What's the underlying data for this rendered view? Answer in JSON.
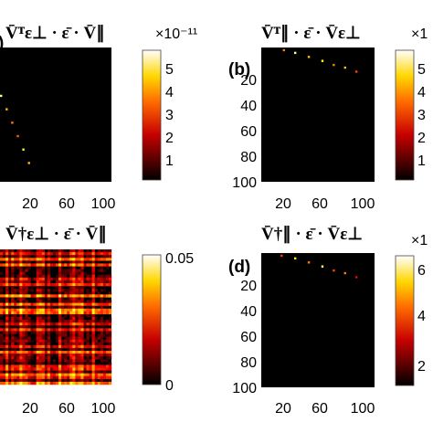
{
  "chart_data": [
    {
      "type": "heatmap",
      "panel_label": ")",
      "title": "V̄ᵀε⊥ · ε̄ · V̄∥",
      "x_ticks": [
        "20",
        "60",
        "100"
      ],
      "y_ticks": [],
      "colorbar_ticks": [
        "1",
        "2",
        "3",
        "4",
        "5"
      ],
      "colorbar_exponent": "×10⁻¹¹",
      "colormap": "hot",
      "peak_trace": [
        [
          1,
          36,
          0.9
        ],
        [
          6,
          46,
          0.7
        ],
        [
          11,
          56,
          0.6
        ],
        [
          16,
          66,
          0.55
        ],
        [
          21,
          76,
          0.8
        ],
        [
          26,
          86,
          0.7
        ]
      ]
    },
    {
      "type": "heatmap",
      "panel_label": "(b)",
      "title": "V̄ᵀ∥ · ε̄ · V̄ε⊥",
      "x_ticks": [
        "20",
        "60",
        "100"
      ],
      "y_ticks": [
        "20",
        "40",
        "60",
        "80",
        "100"
      ],
      "colorbar_ticks": [
        "1",
        "2",
        "3",
        "4",
        "5"
      ],
      "colorbar_exponent": "×1",
      "colormap": "hot",
      "peak_trace": [
        [
          20,
          2,
          0.6
        ],
        [
          30,
          4,
          0.9
        ],
        [
          42,
          7,
          0.7
        ],
        [
          54,
          10,
          0.8
        ],
        [
          64,
          13,
          0.6
        ],
        [
          74,
          15,
          0.7
        ],
        [
          84,
          18,
          0.5
        ]
      ]
    },
    {
      "type": "heatmap",
      "panel_label": ")",
      "title": "V̄†ε⊥ · ε̄ · V̄∥",
      "x_ticks": [
        "20",
        "60",
        "100"
      ],
      "y_ticks": [],
      "colorbar_ticks": [
        "0",
        "0.05"
      ],
      "colorbar_exponent": "",
      "colormap": "hot",
      "pattern": "dense"
    },
    {
      "type": "heatmap",
      "panel_label": "(d)",
      "title": "V̄†∥ · ε̄ · V̄ε⊥",
      "x_ticks": [
        "20",
        "60",
        "100"
      ],
      "y_ticks": [
        "20",
        "40",
        "60",
        "80",
        "100"
      ],
      "colorbar_ticks": [
        "2",
        "4",
        "6"
      ],
      "colorbar_exponent": "×1",
      "colormap": "hot",
      "peak_trace": [
        [
          18,
          2,
          0.5
        ],
        [
          30,
          4,
          0.8
        ],
        [
          42,
          7,
          0.6
        ],
        [
          54,
          10,
          0.9
        ],
        [
          64,
          13,
          0.5
        ],
        [
          74,
          15,
          0.6
        ],
        [
          84,
          18,
          0.4
        ]
      ]
    }
  ]
}
